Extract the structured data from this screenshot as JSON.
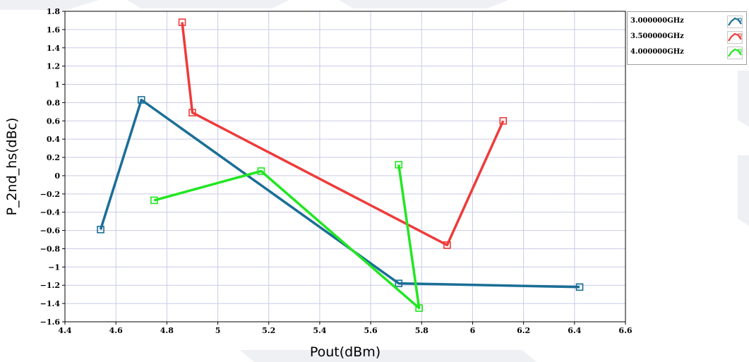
{
  "chart_data": {
    "type": "line",
    "title": "",
    "xlabel": "Pout(dBm)",
    "ylabel": "P_2nd_hs(dBc)",
    "xlim": [
      4.4,
      6.6
    ],
    "ylim": [
      -1.6,
      1.8
    ],
    "x_ticks": [
      "4.4",
      "4.6",
      "4.8",
      "5",
      "5.2",
      "5.4",
      "5.6",
      "5.8",
      "6",
      "6.2",
      "6.4",
      "6.6"
    ],
    "y_ticks": [
      "1.8",
      "1.6",
      "1.4",
      "1.2",
      "1",
      "0.8",
      "0.6",
      "0.4",
      "0.2",
      "0",
      "-0.2",
      "-0.4",
      "-0.6",
      "-0.8",
      "-1",
      "-1.2",
      "-1.4",
      "-1.6"
    ],
    "grid": true,
    "legend_position": "top-right",
    "series": [
      {
        "name": "3.000000GHz",
        "color": "#1a6e96",
        "marker": "square",
        "points": [
          [
            4.54,
            -0.59
          ],
          [
            4.7,
            0.83
          ],
          [
            5.71,
            -1.18
          ],
          [
            6.42,
            -1.22
          ]
        ]
      },
      {
        "name": "3.500000GHz",
        "color": "#ee3b3b",
        "marker": "square",
        "points": [
          [
            4.86,
            1.68
          ],
          [
            4.9,
            0.69
          ],
          [
            5.9,
            -0.76
          ],
          [
            6.12,
            0.6
          ]
        ]
      },
      {
        "name": "4.000000GHz",
        "color": "#22e622",
        "marker": "square",
        "points": [
          [
            4.75,
            -0.27
          ],
          [
            5.17,
            0.05
          ],
          [
            5.79,
            -1.45
          ],
          [
            5.71,
            0.12
          ]
        ]
      }
    ]
  }
}
